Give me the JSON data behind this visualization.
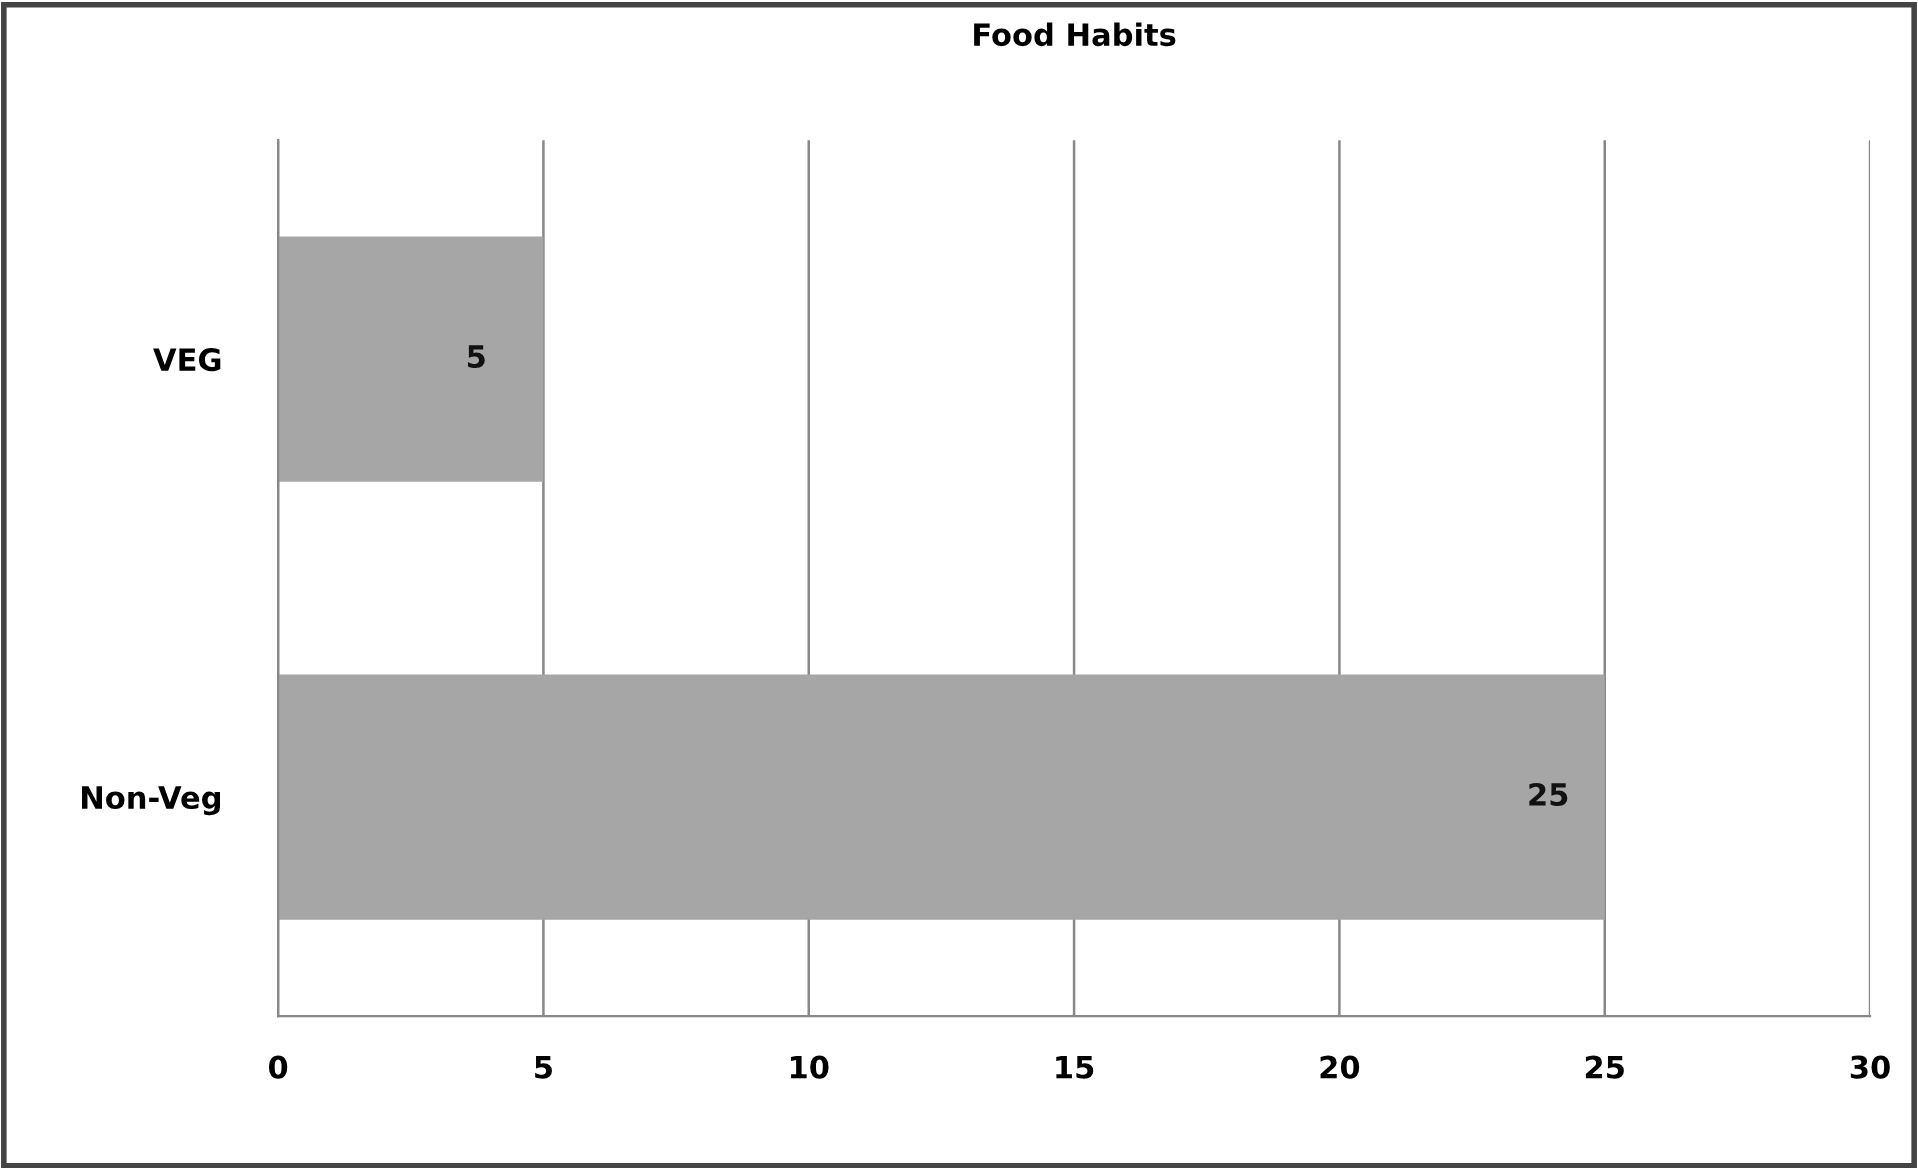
{
  "chart_data": {
    "type": "bar",
    "orientation": "horizontal",
    "title": "Food Habits",
    "categories": [
      "VEG",
      "Non-Veg"
    ],
    "values": [
      5,
      25
    ],
    "color": "#a6a6a6",
    "xlim": [
      0,
      30
    ],
    "xticks": [
      0,
      5,
      10,
      15,
      20,
      25,
      30
    ],
    "grid": "x",
    "data_labels": true
  }
}
